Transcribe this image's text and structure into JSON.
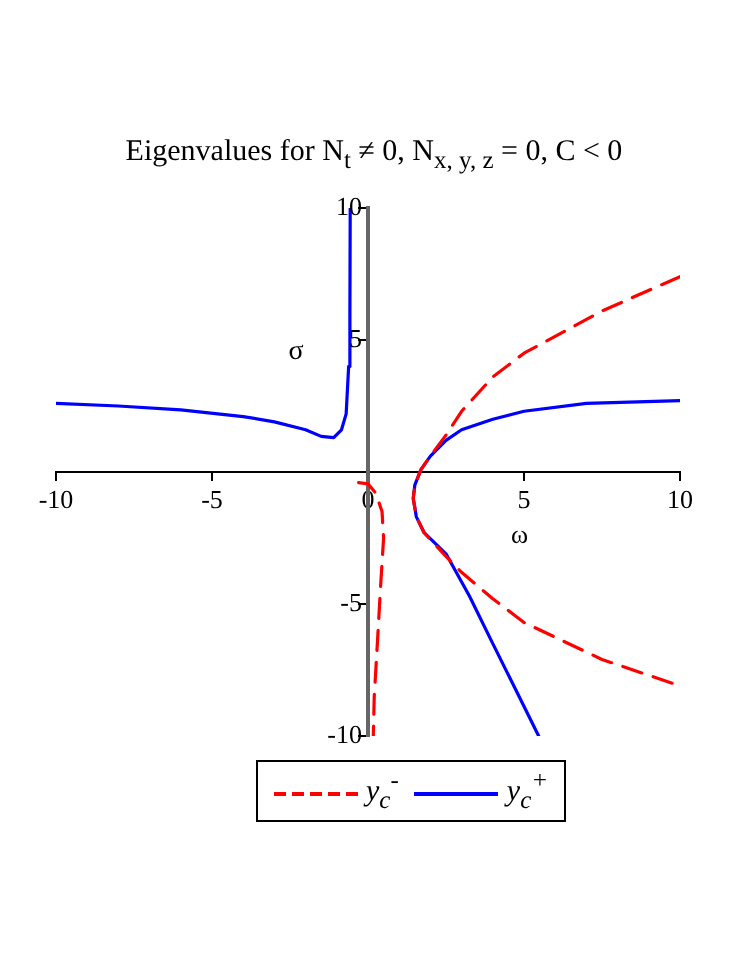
{
  "chart_data": {
    "type": "line",
    "title": "Eigenvalues for N$_{t}$ ≠ 0, N$_{x, y, z}$ = 0, C < 0",
    "xlabel": "ω",
    "ylabel": "σ",
    "xlim": [
      -10,
      10
    ],
    "ylim": [
      -10,
      10
    ],
    "xticks": [
      -10,
      -5,
      0,
      5,
      10
    ],
    "yticks": [
      -10,
      -5,
      5,
      10
    ],
    "grid": false,
    "legend": "bottom",
    "marker": "none",
    "series": [
      {
        "name": "y$_{c}$$^{-}$",
        "color": "#ff0000",
        "line_style": "dashed",
        "x": [
          -0.3,
          0,
          0.25,
          0.45,
          0.5,
          0.4,
          0.3,
          0.2,
          0.17,
          null,
          10,
          7.5,
          5,
          4,
          3,
          2.5,
          2,
          1.7,
          1.5,
          1.45,
          1.55,
          1.8,
          2.5,
          3,
          4,
          5,
          7.5,
          10
        ],
        "values": [
          -0.4,
          -0.45,
          -0.8,
          -1.5,
          -2.5,
          -4.4,
          -6.5,
          -8.5,
          -10,
          null,
          7.4,
          6.1,
          4.5,
          3.6,
          2.3,
          1.4,
          0.6,
          0.1,
          -0.5,
          -1,
          -1.7,
          -2.3,
          -3.2,
          -3.8,
          -4.8,
          -5.7,
          -7.1,
          -8.1
        ]
      },
      {
        "name": "y$_{c}$$^{+}$",
        "color": "#0000ff",
        "line_style": "solid",
        "x": [
          -10,
          -8,
          -6,
          -4,
          -3,
          -2,
          -1.5,
          -1.1,
          -0.85,
          -0.7,
          -0.62,
          -0.58,
          -0.57,
          null,
          10,
          7,
          5,
          4,
          3,
          2.5,
          2,
          1.7,
          1.5,
          1.45,
          1.55,
          1.8,
          2.5,
          3.25,
          4,
          5.47
        ],
        "values": [
          2.6,
          2.5,
          2.35,
          2.1,
          1.9,
          1.6,
          1.35,
          1.3,
          1.6,
          2.2,
          4,
          6,
          10,
          null,
          2.7,
          2.6,
          2.3,
          2,
          1.6,
          1.2,
          0.6,
          0.1,
          -0.5,
          -1,
          -1.7,
          -2.3,
          -3.1,
          -4.7,
          -6.5,
          -10
        ]
      }
    ]
  }
}
